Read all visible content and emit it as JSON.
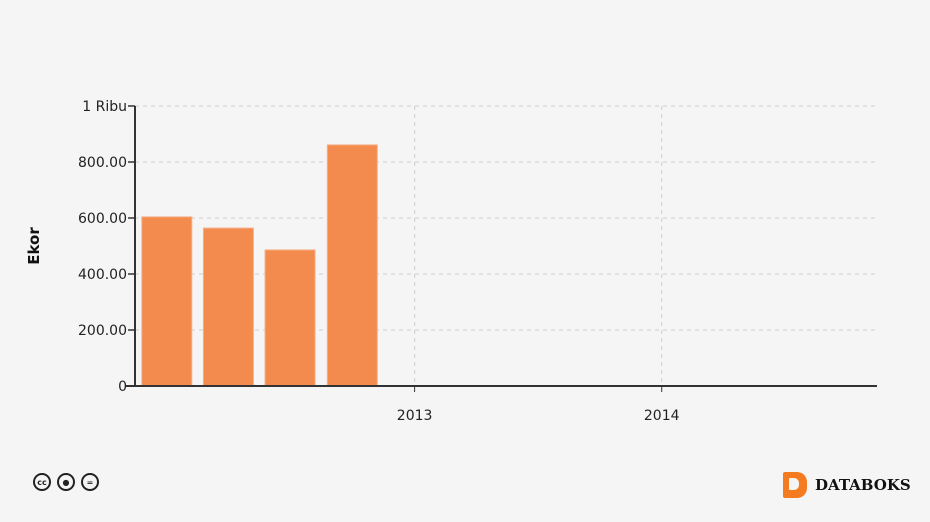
{
  "chart_data": {
    "type": "bar",
    "title": "",
    "xlabel": "",
    "ylabel": "Ekor",
    "x": [
      "2012-01-01",
      "2012-04-01",
      "2012-07-01",
      "2012-10-01"
    ],
    "values": [
      604,
      564,
      486,
      861
    ],
    "ylim": [
      0,
      1000
    ],
    "xlim": [
      "2011-11-15",
      "2014-11-15"
    ],
    "yticks": [
      0,
      200,
      400,
      600,
      800,
      1000
    ],
    "ytick_labels": [
      "0",
      "200.00",
      "400.00",
      "600.00",
      "800.00",
      "1 Ribu"
    ],
    "xticks": [
      "2013-01-01",
      "2014-01-01"
    ],
    "xtick_labels": [
      "2013",
      "2014"
    ],
    "grid": true,
    "bar_color": "#f28b4d"
  },
  "footer": {
    "license_icons": [
      "cc-icon",
      "by-attribution-icon",
      "no-derivatives-icon"
    ],
    "brand": "DATABOKS",
    "brand_color": "#f47b20"
  }
}
